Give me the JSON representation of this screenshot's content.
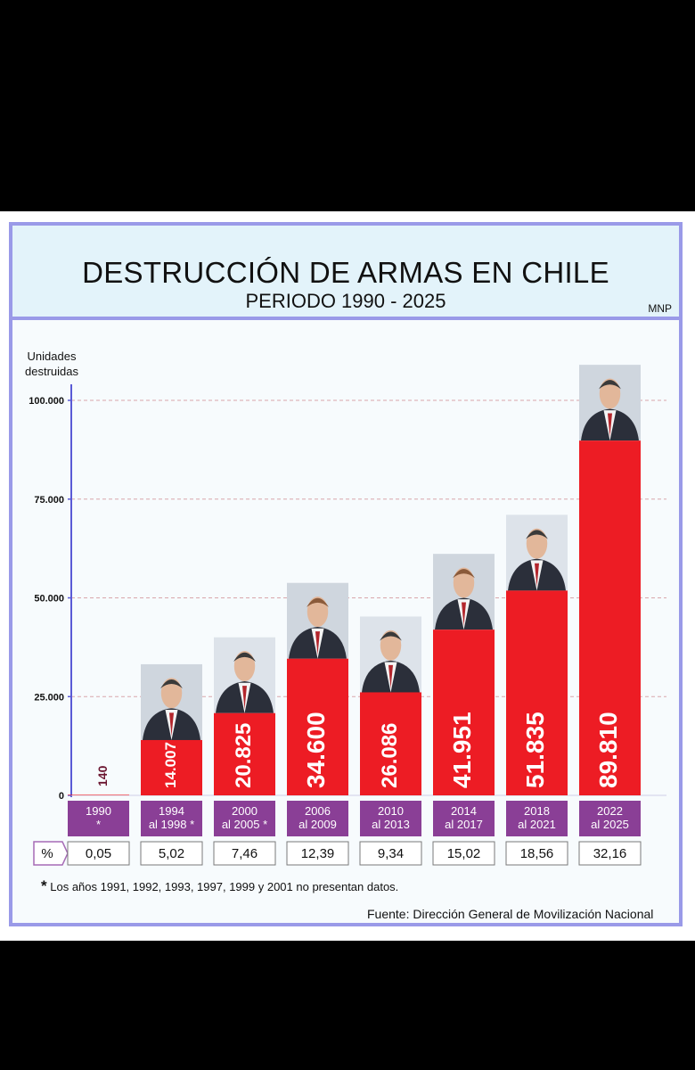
{
  "header": {
    "title": "DESTRUCCIÓN DE ARMAS EN CHILE",
    "subtitle": "PERIODO 1990 - 2025",
    "badge": "MNP"
  },
  "chart_data": {
    "type": "bar",
    "ylabel": "Unidades destruidas",
    "ylim": [
      0,
      100000
    ],
    "yticks": [
      0,
      25000,
      50000,
      75000,
      100000
    ],
    "ytick_labels": [
      "0",
      "25.000",
      "50.000",
      "75.000",
      "100.000"
    ],
    "grid": true,
    "categories": [
      [
        "1990",
        "*"
      ],
      [
        "1994",
        "al 1998 *"
      ],
      [
        "2000",
        "al 2005 *"
      ],
      [
        "2006",
        "al 2009"
      ],
      [
        "2010",
        "al 2013"
      ],
      [
        "2014",
        "al 2017"
      ],
      [
        "2018",
        "al 2021"
      ],
      [
        "2022",
        "al 2025"
      ]
    ],
    "values": [
      140,
      14007,
      20825,
      34600,
      26086,
      41951,
      51835,
      89810
    ],
    "value_labels": [
      "140",
      "14.007",
      "20.825",
      "34.600",
      "26.086",
      "41.951",
      "51.835",
      "89.810"
    ],
    "percent_label": "%",
    "percentages": [
      "0,05",
      "5,02",
      "7,46",
      "12,39",
      "9,34",
      "15,02",
      "18,56",
      "32,16"
    ],
    "colors": {
      "bar": "#ed1c24",
      "category_box": "#8a3f96",
      "small_label": "#6b1530",
      "grid": "#d9a6ac"
    }
  },
  "footnote": {
    "star": "*",
    "text": "Los años 1991, 1992, 1993, 1997, 1999 y 2001 no presentan datos."
  },
  "source": "Fuente: Dirección General de Movilización Nacional"
}
